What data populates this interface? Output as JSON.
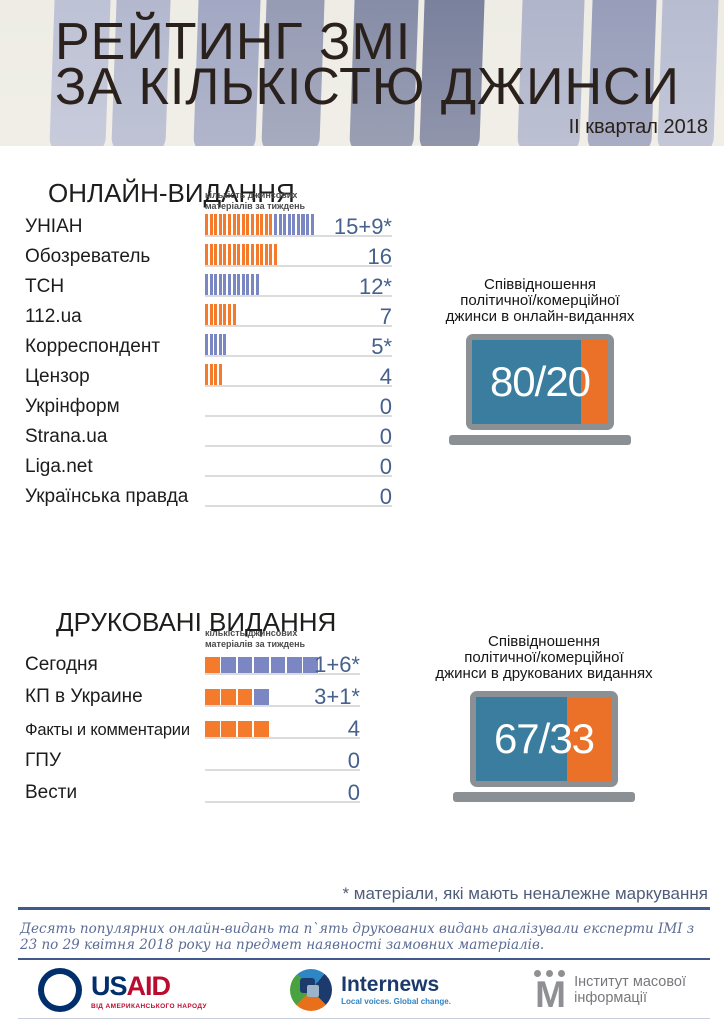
{
  "header": {
    "title_line1": "РЕЙТИНГ ЗМІ",
    "title_line2": "ЗА КІЛЬКІСТЮ ДЖИНСИ",
    "period": "ІІ квартал 2018"
  },
  "colors": {
    "orange": "#F47B2B",
    "blue": "#7B87C2",
    "screen_blue": "#3A7D9E",
    "screen_orange": "#EB7128",
    "laptop_gray": "#8A9094",
    "value_text": "#45618C",
    "underline": "#DCDCDC",
    "rule_blue": "#41598C"
  },
  "online_section": {
    "title": "ОНЛАЙН-ВИДАННЯ",
    "axis_label_line1": "кількість джинсових",
    "axis_label_line2": "матеріалів за тиждень",
    "rows": [
      {
        "label": "УНІАН",
        "orange": 15,
        "blue": 9,
        "value": "15+9*"
      },
      {
        "label": "Обозреватель",
        "orange": 16,
        "blue": 0,
        "value": "16"
      },
      {
        "label": "ТСН",
        "orange": 0,
        "blue": 12,
        "value": "12*"
      },
      {
        "label": "112.ua",
        "orange": 7,
        "blue": 0,
        "value": "7"
      },
      {
        "label": "Корреспондент",
        "orange": 0,
        "blue": 5,
        "value": "5*"
      },
      {
        "label": "Цензор",
        "orange": 4,
        "blue": 0,
        "value": "4"
      },
      {
        "label": "Укрінформ",
        "orange": 0,
        "blue": 0,
        "value": "0"
      },
      {
        "label": "Strana.ua",
        "orange": 0,
        "blue": 0,
        "value": "0"
      },
      {
        "label": "Liga.net",
        "orange": 0,
        "blue": 0,
        "value": "0"
      },
      {
        "label": "Українська правда",
        "orange": 0,
        "blue": 0,
        "value": "0"
      }
    ],
    "laptop": {
      "caption_line1": "Співвідношення",
      "caption_line2": "політичної/комерційної",
      "caption_line3": "джинси в онлайн-виданнях",
      "ratio_label": "80/20",
      "political_pct": 80,
      "commercial_pct": 20
    }
  },
  "print_section": {
    "title": "ДРУКОВАНІ ВИДАННЯ",
    "axis_label_line1": "кількість джинсових",
    "axis_label_line2": "матеріалів за тиждень",
    "rows": [
      {
        "label": "Сегодня",
        "orange": 1,
        "blue": 6,
        "value": "1+6*"
      },
      {
        "label": "КП в Украине",
        "orange": 3,
        "blue": 1,
        "value": "3+1*"
      },
      {
        "label": "Факты и комментарии",
        "orange": 4,
        "blue": 0,
        "value": "4"
      },
      {
        "label": "ГПУ",
        "orange": 0,
        "blue": 0,
        "value": "0"
      },
      {
        "label": "Вести",
        "orange": 0,
        "blue": 0,
        "value": "0"
      }
    ],
    "laptop": {
      "caption_line1": "Співвідношення",
      "caption_line2": "політичної/комерційної",
      "caption_line3": "джинси в друкованих виданнях",
      "ratio_label": "67/33",
      "political_pct": 67,
      "commercial_pct": 33
    }
  },
  "footnote": "* матеріали, які мають неналежне маркування",
  "methodology": "Десять популярних онлайн-видань та п`ять друкованих видань аналізували експерти ІМІ з 23 по 29 квітня 2018 року на предмет наявності замовних матеріалів.",
  "logos": {
    "usaid": {
      "name_part1": "US",
      "name_part2": "AID",
      "subtext": "ВІД АМЕРИКАНСЬКОГО НАРОДУ"
    },
    "internews": {
      "name": "Internews",
      "tagline": "Local voices. Global change."
    },
    "imi": {
      "mark": "М",
      "name_line1": "Інститут масової",
      "name_line2": "інформації"
    }
  },
  "chart_data": [
    {
      "type": "bar",
      "orientation": "horizontal",
      "title": "ОНЛАЙН-ВИДАННЯ",
      "axis_note": "кількість джинсових матеріалів за тиждень",
      "categories": [
        "УНІАН",
        "Обозреватель",
        "ТСН",
        "112.ua",
        "Корреспондент",
        "Цензор",
        "Укрінформ",
        "Strana.ua",
        "Liga.net",
        "Українська правда"
      ],
      "series": [
        {
          "name": "джинсові матеріали",
          "color": "#F47B2B",
          "values": [
            15,
            16,
            0,
            7,
            0,
            4,
            0,
            0,
            0,
            0
          ]
        },
        {
          "name": "матеріали з неналежним маркуванням (*)",
          "color": "#7B87C2",
          "values": [
            9,
            0,
            12,
            0,
            5,
            0,
            0,
            0,
            0,
            0
          ]
        }
      ],
      "bar_labels": [
        "15+9*",
        "16",
        "12*",
        "7",
        "5*",
        "4",
        "0",
        "0",
        "0",
        "0"
      ],
      "xlim": [
        0,
        24
      ],
      "grid": false,
      "legend": false
    },
    {
      "type": "bar",
      "orientation": "horizontal",
      "title": "ДРУКОВАНІ ВИДАННЯ",
      "axis_note": "кількість джинсових матеріалів за тиждень",
      "categories": [
        "Сегодня",
        "КП в Украине",
        "Факты и комментарии",
        "ГПУ",
        "Вести"
      ],
      "series": [
        {
          "name": "джинсові матеріали",
          "color": "#F47B2B",
          "values": [
            1,
            3,
            4,
            0,
            0
          ]
        },
        {
          "name": "матеріали з неналежним маркуванням (*)",
          "color": "#7B87C2",
          "values": [
            6,
            1,
            0,
            0,
            0
          ]
        }
      ],
      "bar_labels": [
        "1+6*",
        "3+1*",
        "4",
        "0",
        "0"
      ],
      "xlim": [
        0,
        7
      ],
      "grid": false,
      "legend": false
    },
    {
      "type": "pie",
      "title": "Співвідношення політичної/комерційної джинси в онлайн-виданнях",
      "labels": [
        "політична джинса",
        "комерційна джинса"
      ],
      "values": [
        80,
        20
      ],
      "display_label": "80/20"
    },
    {
      "type": "pie",
      "title": "Співвідношення політичної/комерційної джинси в друкованих виданнях",
      "labels": [
        "політична джинса",
        "комерційна джинса"
      ],
      "values": [
        67,
        33
      ],
      "display_label": "67/33"
    }
  ]
}
